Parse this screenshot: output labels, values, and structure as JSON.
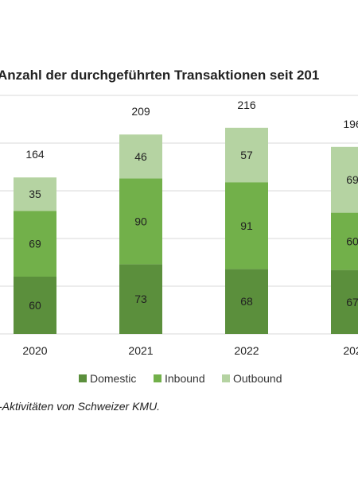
{
  "chart_data": {
    "type": "bar",
    "stacked": true,
    "title": "Anzahl der durchgeführten Transaktionen seit 201",
    "categories": [
      "2020",
      "2021",
      "2022",
      "202"
    ],
    "series": [
      {
        "name": "Domestic",
        "values": [
          60,
          73,
          68,
          67
        ],
        "color": "#5b8f3c"
      },
      {
        "name": "Inbound",
        "values": [
          69,
          90,
          91,
          60
        ],
        "color": "#72b04a"
      },
      {
        "name": "Outbound",
        "values": [
          35,
          46,
          57,
          69
        ],
        "color": "#b5d3a2"
      }
    ],
    "series_labels": [
      [
        "60",
        "73",
        "68",
        "67"
      ],
      [
        "69",
        "90",
        "91",
        "60"
      ],
      [
        "35",
        "46",
        "57",
        "69"
      ]
    ],
    "totals": [
      "164",
      "209",
      "216",
      "196"
    ],
    "ylim": [
      0,
      250
    ],
    "grid": true,
    "legend": "bottom"
  },
  "caption": "-Aktivitäten von Schweizer KMU."
}
